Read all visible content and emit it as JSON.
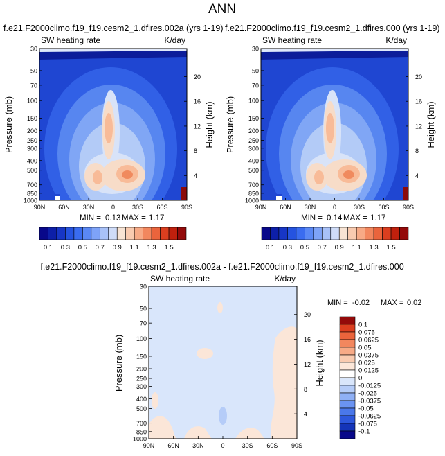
{
  "figure": {
    "title": "ANN"
  },
  "panels": [
    {
      "id": "case",
      "title": "f.e21.F2000climo.f19_f19.cesm2_1.dfires.002a (yrs 1-19)",
      "left_label": "SW heating rate",
      "right_label": "K/day",
      "ylabel": "Pressure (mb)",
      "ylabel_right": "Height (km)",
      "stats": {
        "min_label": "MIN =",
        "min": "0.13",
        "max_label": "MAX =",
        "max": "1.17"
      }
    },
    {
      "id": "control",
      "title": "f.e21.F2000climo.f19_f19.cesm2_1.dfires.000 (yrs 1-19)",
      "left_label": "SW heating rate",
      "right_label": "K/day",
      "ylabel": "Pressure (mb)",
      "ylabel_right": "Height (km)",
      "stats": {
        "min_label": "MIN =",
        "min": "0.14",
        "max_label": "MAX =",
        "max": "1.17"
      }
    },
    {
      "id": "diff",
      "title": "f.e21.F2000climo.f19_f19.cesm2_1.dfires.002a - f.e21.F2000climo.f19_f19.cesm2_1.dfires.000",
      "left_label": "SW heating rate",
      "right_label": "K/day",
      "ylabel": "Pressure (mb)",
      "ylabel_right": "Height (km)",
      "stats": {
        "min_label": "MIN =",
        "min": "-0.02",
        "max_label": "MAX =",
        "max": "0.02"
      }
    }
  ],
  "chart_data": [
    {
      "type": "heatmap",
      "panel": "case",
      "title": "f.e21.F2000climo.f19_f19.cesm2_1.dfires.002a (yrs 1-19)",
      "xlabel": "",
      "ylabel": "Pressure (mb)",
      "x_ticks": [
        "90N",
        "60N",
        "30N",
        "0",
        "30S",
        "60S",
        "90S"
      ],
      "y_ticks": [
        "30",
        "50",
        "70",
        "100",
        "150",
        "200",
        "250",
        "300",
        "400",
        "500",
        "700",
        "850",
        "1000"
      ],
      "y_right_ticks": [
        "20",
        "16",
        "12",
        "8",
        "4"
      ],
      "ylim": [
        1000,
        30
      ],
      "yscale": "log",
      "min": 0.13,
      "max": 1.17
    },
    {
      "type": "heatmap",
      "panel": "control",
      "title": "f.e21.F2000climo.f19_f19.cesm2_1.dfires.000 (yrs 1-19)",
      "xlabel": "",
      "ylabel": "Pressure (mb)",
      "x_ticks": [
        "90N",
        "60N",
        "30N",
        "0",
        "30S",
        "60S",
        "90S"
      ],
      "y_ticks": [
        "30",
        "50",
        "70",
        "100",
        "150",
        "200",
        "250",
        "300",
        "400",
        "500",
        "700",
        "850",
        "1000"
      ],
      "y_right_ticks": [
        "20",
        "16",
        "12",
        "8",
        "4"
      ],
      "ylim": [
        1000,
        30
      ],
      "yscale": "log",
      "min": 0.14,
      "max": 1.17
    },
    {
      "type": "heatmap",
      "panel": "diff",
      "title": "f.e21.F2000climo.f19_f19.cesm2_1.dfires.002a - f.e21.F2000climo.f19_f19.cesm2_1.dfires.000",
      "xlabel": "",
      "ylabel": "Pressure (mb)",
      "x_ticks": [
        "90N",
        "60N",
        "30N",
        "0",
        "30S",
        "60S",
        "90S"
      ],
      "y_ticks": [
        "30",
        "50",
        "70",
        "100",
        "150",
        "200",
        "250",
        "300",
        "400",
        "500",
        "700",
        "850",
        "1000"
      ],
      "y_right_ticks": [
        "20",
        "16",
        "12",
        "8",
        "4"
      ],
      "ylim": [
        1000,
        30
      ],
      "yscale": "log",
      "min": -0.02,
      "max": 0.02
    }
  ],
  "colorbars": {
    "main": {
      "labels": [
        "0.1",
        "0.3",
        "0.5",
        "0.7",
        "0.9",
        "1.1",
        "1.3",
        "1.5"
      ],
      "colors": [
        "#08088a",
        "#0d1fa8",
        "#1736c6",
        "#2553e0",
        "#3a6cf0",
        "#5a88f5",
        "#7ea3f8",
        "#a8c1f8",
        "#cfdcf8",
        "#f8e4d4",
        "#f9cbb0",
        "#f7aa86",
        "#f2875e",
        "#ea643c",
        "#db3e1f",
        "#c0200d",
        "#930a0a"
      ]
    },
    "diff": {
      "labels": [
        "0.1",
        "0.075",
        "0.0625",
        "0.05",
        "0.0375",
        "0.025",
        "0.0125",
        "0",
        "-0.0125",
        "-0.025",
        "-0.0375",
        "-0.05",
        "-0.0625",
        "-0.075",
        "-0.1"
      ],
      "colors": [
        "#930a0a",
        "#db3e1f",
        "#ea643c",
        "#f2875e",
        "#f7aa86",
        "#f9cbb0",
        "#fce7d9",
        "#ffffff",
        "#d9e6fb",
        "#b5ccf8",
        "#8fb0f5",
        "#6a93f2",
        "#4a77ea",
        "#2d57dc",
        "#1434b8",
        "#08088a"
      ]
    }
  }
}
